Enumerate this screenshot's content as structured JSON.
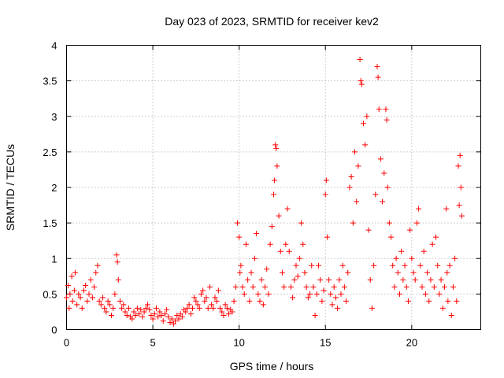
{
  "chart_data": {
    "type": "scatter",
    "title": "Day 023 of 2023, SRMTID for receiver kev2",
    "xlabel": "GPS time / hours",
    "ylabel": "SRMTID / TECUs",
    "xlim": [
      0,
      24
    ],
    "ylim": [
      0,
      4
    ],
    "xticks": [
      0,
      5,
      10,
      15,
      20
    ],
    "xtick_labels": [
      "0",
      "5",
      "10",
      "15",
      "20"
    ],
    "yticks": [
      0,
      0.5,
      1,
      1.5,
      2,
      2.5,
      3,
      3.5,
      4
    ],
    "ytick_labels": [
      "0",
      "0.5",
      "1",
      "1.5",
      "2",
      "2.5",
      "3",
      "3.5",
      "4"
    ],
    "grid": true,
    "marker": "+",
    "color": "#ff0000",
    "series": [
      {
        "name": "kev2",
        "points": [
          [
            0.0,
            0.45
          ],
          [
            0.1,
            0.62
          ],
          [
            0.15,
            0.3
          ],
          [
            0.2,
            0.5
          ],
          [
            0.3,
            0.75
          ],
          [
            0.35,
            0.4
          ],
          [
            0.45,
            0.55
          ],
          [
            0.5,
            0.8
          ],
          [
            0.6,
            0.35
          ],
          [
            0.7,
            0.5
          ],
          [
            0.8,
            0.45
          ],
          [
            0.9,
            0.3
          ],
          [
            1.0,
            0.55
          ],
          [
            1.1,
            0.62
          ],
          [
            1.2,
            0.4
          ],
          [
            1.3,
            0.5
          ],
          [
            1.4,
            0.7
          ],
          [
            1.5,
            0.45
          ],
          [
            1.6,
            0.6
          ],
          [
            1.7,
            0.8
          ],
          [
            1.8,
            0.9
          ],
          [
            1.9,
            0.4
          ],
          [
            2.0,
            0.35
          ],
          [
            2.1,
            0.45
          ],
          [
            2.2,
            0.3
          ],
          [
            2.3,
            0.25
          ],
          [
            2.4,
            0.4
          ],
          [
            2.5,
            0.35
          ],
          [
            2.6,
            0.2
          ],
          [
            2.7,
            0.3
          ],
          [
            2.8,
            0.5
          ],
          [
            2.9,
            1.05
          ],
          [
            2.95,
            0.95
          ],
          [
            3.0,
            0.7
          ],
          [
            3.1,
            0.4
          ],
          [
            3.2,
            0.3
          ],
          [
            3.3,
            0.35
          ],
          [
            3.4,
            0.25
          ],
          [
            3.5,
            0.2
          ],
          [
            3.6,
            0.3
          ],
          [
            3.7,
            0.18
          ],
          [
            3.8,
            0.15
          ],
          [
            3.9,
            0.25
          ],
          [
            4.0,
            0.2
          ],
          [
            4.1,
            0.3
          ],
          [
            4.2,
            0.22
          ],
          [
            4.3,
            0.28
          ],
          [
            4.4,
            0.18
          ],
          [
            4.5,
            0.25
          ],
          [
            4.6,
            0.3
          ],
          [
            4.7,
            0.35
          ],
          [
            4.8,
            0.28
          ],
          [
            4.9,
            0.2
          ],
          [
            5.0,
            0.15
          ],
          [
            5.1,
            0.22
          ],
          [
            5.2,
            0.3
          ],
          [
            5.3,
            0.18
          ],
          [
            5.4,
            0.25
          ],
          [
            5.5,
            0.2
          ],
          [
            5.6,
            0.12
          ],
          [
            5.7,
            0.22
          ],
          [
            5.8,
            0.28
          ],
          [
            5.9,
            0.18
          ],
          [
            6.0,
            0.1
          ],
          [
            6.1,
            0.15
          ],
          [
            6.2,
            0.08
          ],
          [
            6.3,
            0.12
          ],
          [
            6.4,
            0.2
          ],
          [
            6.5,
            0.15
          ],
          [
            6.6,
            0.22
          ],
          [
            6.7,
            0.18
          ],
          [
            6.8,
            0.28
          ],
          [
            6.9,
            0.25
          ],
          [
            7.0,
            0.3
          ],
          [
            7.1,
            0.35
          ],
          [
            7.2,
            0.22
          ],
          [
            7.3,
            0.3
          ],
          [
            7.4,
            0.45
          ],
          [
            7.5,
            0.4
          ],
          [
            7.6,
            0.35
          ],
          [
            7.7,
            0.3
          ],
          [
            7.8,
            0.5
          ],
          [
            7.9,
            0.55
          ],
          [
            8.0,
            0.4
          ],
          [
            8.1,
            0.45
          ],
          [
            8.2,
            0.3
          ],
          [
            8.3,
            0.6
          ],
          [
            8.4,
            0.35
          ],
          [
            8.5,
            0.3
          ],
          [
            8.6,
            0.45
          ],
          [
            8.7,
            0.4
          ],
          [
            8.8,
            0.55
          ],
          [
            8.9,
            0.3
          ],
          [
            9.0,
            0.25
          ],
          [
            9.1,
            0.2
          ],
          [
            9.2,
            0.35
          ],
          [
            9.3,
            0.3
          ],
          [
            9.4,
            0.22
          ],
          [
            9.5,
            0.28
          ],
          [
            9.6,
            0.25
          ],
          [
            9.7,
            0.4
          ],
          [
            9.8,
            0.6
          ],
          [
            9.9,
            1.5
          ],
          [
            10.0,
            1.3
          ],
          [
            10.05,
            0.8
          ],
          [
            10.1,
            0.9
          ],
          [
            10.2,
            0.6
          ],
          [
            10.3,
            0.5
          ],
          [
            10.4,
            1.2
          ],
          [
            10.5,
            0.7
          ],
          [
            10.6,
            0.4
          ],
          [
            10.7,
            0.8
          ],
          [
            10.8,
            0.6
          ],
          [
            10.9,
            1.0
          ],
          [
            11.0,
            1.35
          ],
          [
            11.1,
            0.5
          ],
          [
            11.2,
            0.4
          ],
          [
            11.3,
            0.7
          ],
          [
            11.4,
            0.35
          ],
          [
            11.5,
            0.6
          ],
          [
            11.6,
            0.85
          ],
          [
            11.7,
            0.5
          ],
          [
            11.8,
            1.2
          ],
          [
            11.9,
            1.45
          ],
          [
            12.0,
            1.9
          ],
          [
            12.05,
            2.1
          ],
          [
            12.1,
            2.6
          ],
          [
            12.15,
            2.55
          ],
          [
            12.2,
            2.3
          ],
          [
            12.3,
            1.6
          ],
          [
            12.4,
            1.1
          ],
          [
            12.5,
            0.8
          ],
          [
            12.6,
            0.6
          ],
          [
            12.7,
            1.2
          ],
          [
            12.8,
            1.7
          ],
          [
            12.9,
            1.1
          ],
          [
            13.0,
            0.6
          ],
          [
            13.1,
            0.45
          ],
          [
            13.2,
            0.7
          ],
          [
            13.3,
            0.9
          ],
          [
            13.4,
            0.75
          ],
          [
            13.5,
            1.0
          ],
          [
            13.6,
            1.5
          ],
          [
            13.7,
            1.2
          ],
          [
            13.8,
            0.8
          ],
          [
            13.9,
            0.6
          ],
          [
            14.0,
            0.45
          ],
          [
            14.1,
            0.5
          ],
          [
            14.2,
            0.9
          ],
          [
            14.3,
            0.6
          ],
          [
            14.4,
            0.2
          ],
          [
            14.5,
            0.5
          ],
          [
            14.6,
            0.9
          ],
          [
            14.7,
            0.7
          ],
          [
            14.8,
            0.4
          ],
          [
            14.9,
            0.55
          ],
          [
            15.0,
            1.9
          ],
          [
            15.05,
            2.1
          ],
          [
            15.1,
            1.3
          ],
          [
            15.2,
            0.7
          ],
          [
            15.3,
            0.5
          ],
          [
            15.4,
            0.35
          ],
          [
            15.5,
            0.6
          ],
          [
            15.6,
            0.45
          ],
          [
            15.7,
            0.3
          ],
          [
            15.8,
            0.7
          ],
          [
            15.9,
            0.5
          ],
          [
            16.0,
            0.9
          ],
          [
            16.1,
            0.6
          ],
          [
            16.2,
            0.4
          ],
          [
            16.3,
            0.8
          ],
          [
            16.4,
            2.0
          ],
          [
            16.5,
            2.15
          ],
          [
            16.6,
            1.5
          ],
          [
            16.7,
            2.5
          ],
          [
            16.8,
            1.8
          ],
          [
            16.9,
            2.3
          ],
          [
            17.0,
            3.8
          ],
          [
            17.05,
            3.5
          ],
          [
            17.1,
            3.45
          ],
          [
            17.2,
            2.9
          ],
          [
            17.3,
            2.6
          ],
          [
            17.4,
            3.0
          ],
          [
            17.5,
            1.4
          ],
          [
            17.6,
            0.7
          ],
          [
            17.7,
            0.3
          ],
          [
            17.8,
            0.9
          ],
          [
            17.9,
            1.9
          ],
          [
            18.0,
            3.7
          ],
          [
            18.05,
            3.55
          ],
          [
            18.1,
            3.1
          ],
          [
            18.2,
            2.4
          ],
          [
            18.3,
            1.8
          ],
          [
            18.4,
            2.2
          ],
          [
            18.5,
            3.1
          ],
          [
            18.55,
            2.95
          ],
          [
            18.6,
            2.0
          ],
          [
            18.7,
            1.5
          ],
          [
            18.8,
            1.3
          ],
          [
            18.9,
            0.9
          ],
          [
            19.0,
            0.6
          ],
          [
            19.1,
            1.0
          ],
          [
            19.2,
            0.8
          ],
          [
            19.3,
            0.5
          ],
          [
            19.4,
            1.1
          ],
          [
            19.5,
            0.7
          ],
          [
            19.6,
            0.9
          ],
          [
            19.7,
            0.6
          ],
          [
            19.8,
            0.4
          ],
          [
            19.9,
            1.4
          ],
          [
            20.0,
            1.0
          ],
          [
            20.1,
            0.8
          ],
          [
            20.2,
            0.7
          ],
          [
            20.3,
            1.5
          ],
          [
            20.4,
            1.7
          ],
          [
            20.5,
            0.9
          ],
          [
            20.6,
            0.6
          ],
          [
            20.7,
            1.1
          ],
          [
            20.8,
            0.5
          ],
          [
            20.9,
            0.8
          ],
          [
            21.0,
            0.4
          ],
          [
            21.1,
            0.7
          ],
          [
            21.2,
            1.2
          ],
          [
            21.3,
            0.6
          ],
          [
            21.4,
            1.3
          ],
          [
            21.5,
            0.9
          ],
          [
            21.6,
            0.5
          ],
          [
            21.7,
            0.7
          ],
          [
            21.8,
            0.3
          ],
          [
            21.9,
            0.6
          ],
          [
            22.0,
            1.7
          ],
          [
            22.05,
            0.8
          ],
          [
            22.1,
            0.4
          ],
          [
            22.2,
            0.9
          ],
          [
            22.3,
            0.2
          ],
          [
            22.4,
            0.6
          ],
          [
            22.5,
            1.0
          ],
          [
            22.6,
            0.4
          ],
          [
            22.7,
            2.3
          ],
          [
            22.75,
            1.75
          ],
          [
            22.8,
            2.45
          ],
          [
            22.85,
            2.0
          ],
          [
            22.9,
            1.6
          ]
        ]
      }
    ]
  }
}
